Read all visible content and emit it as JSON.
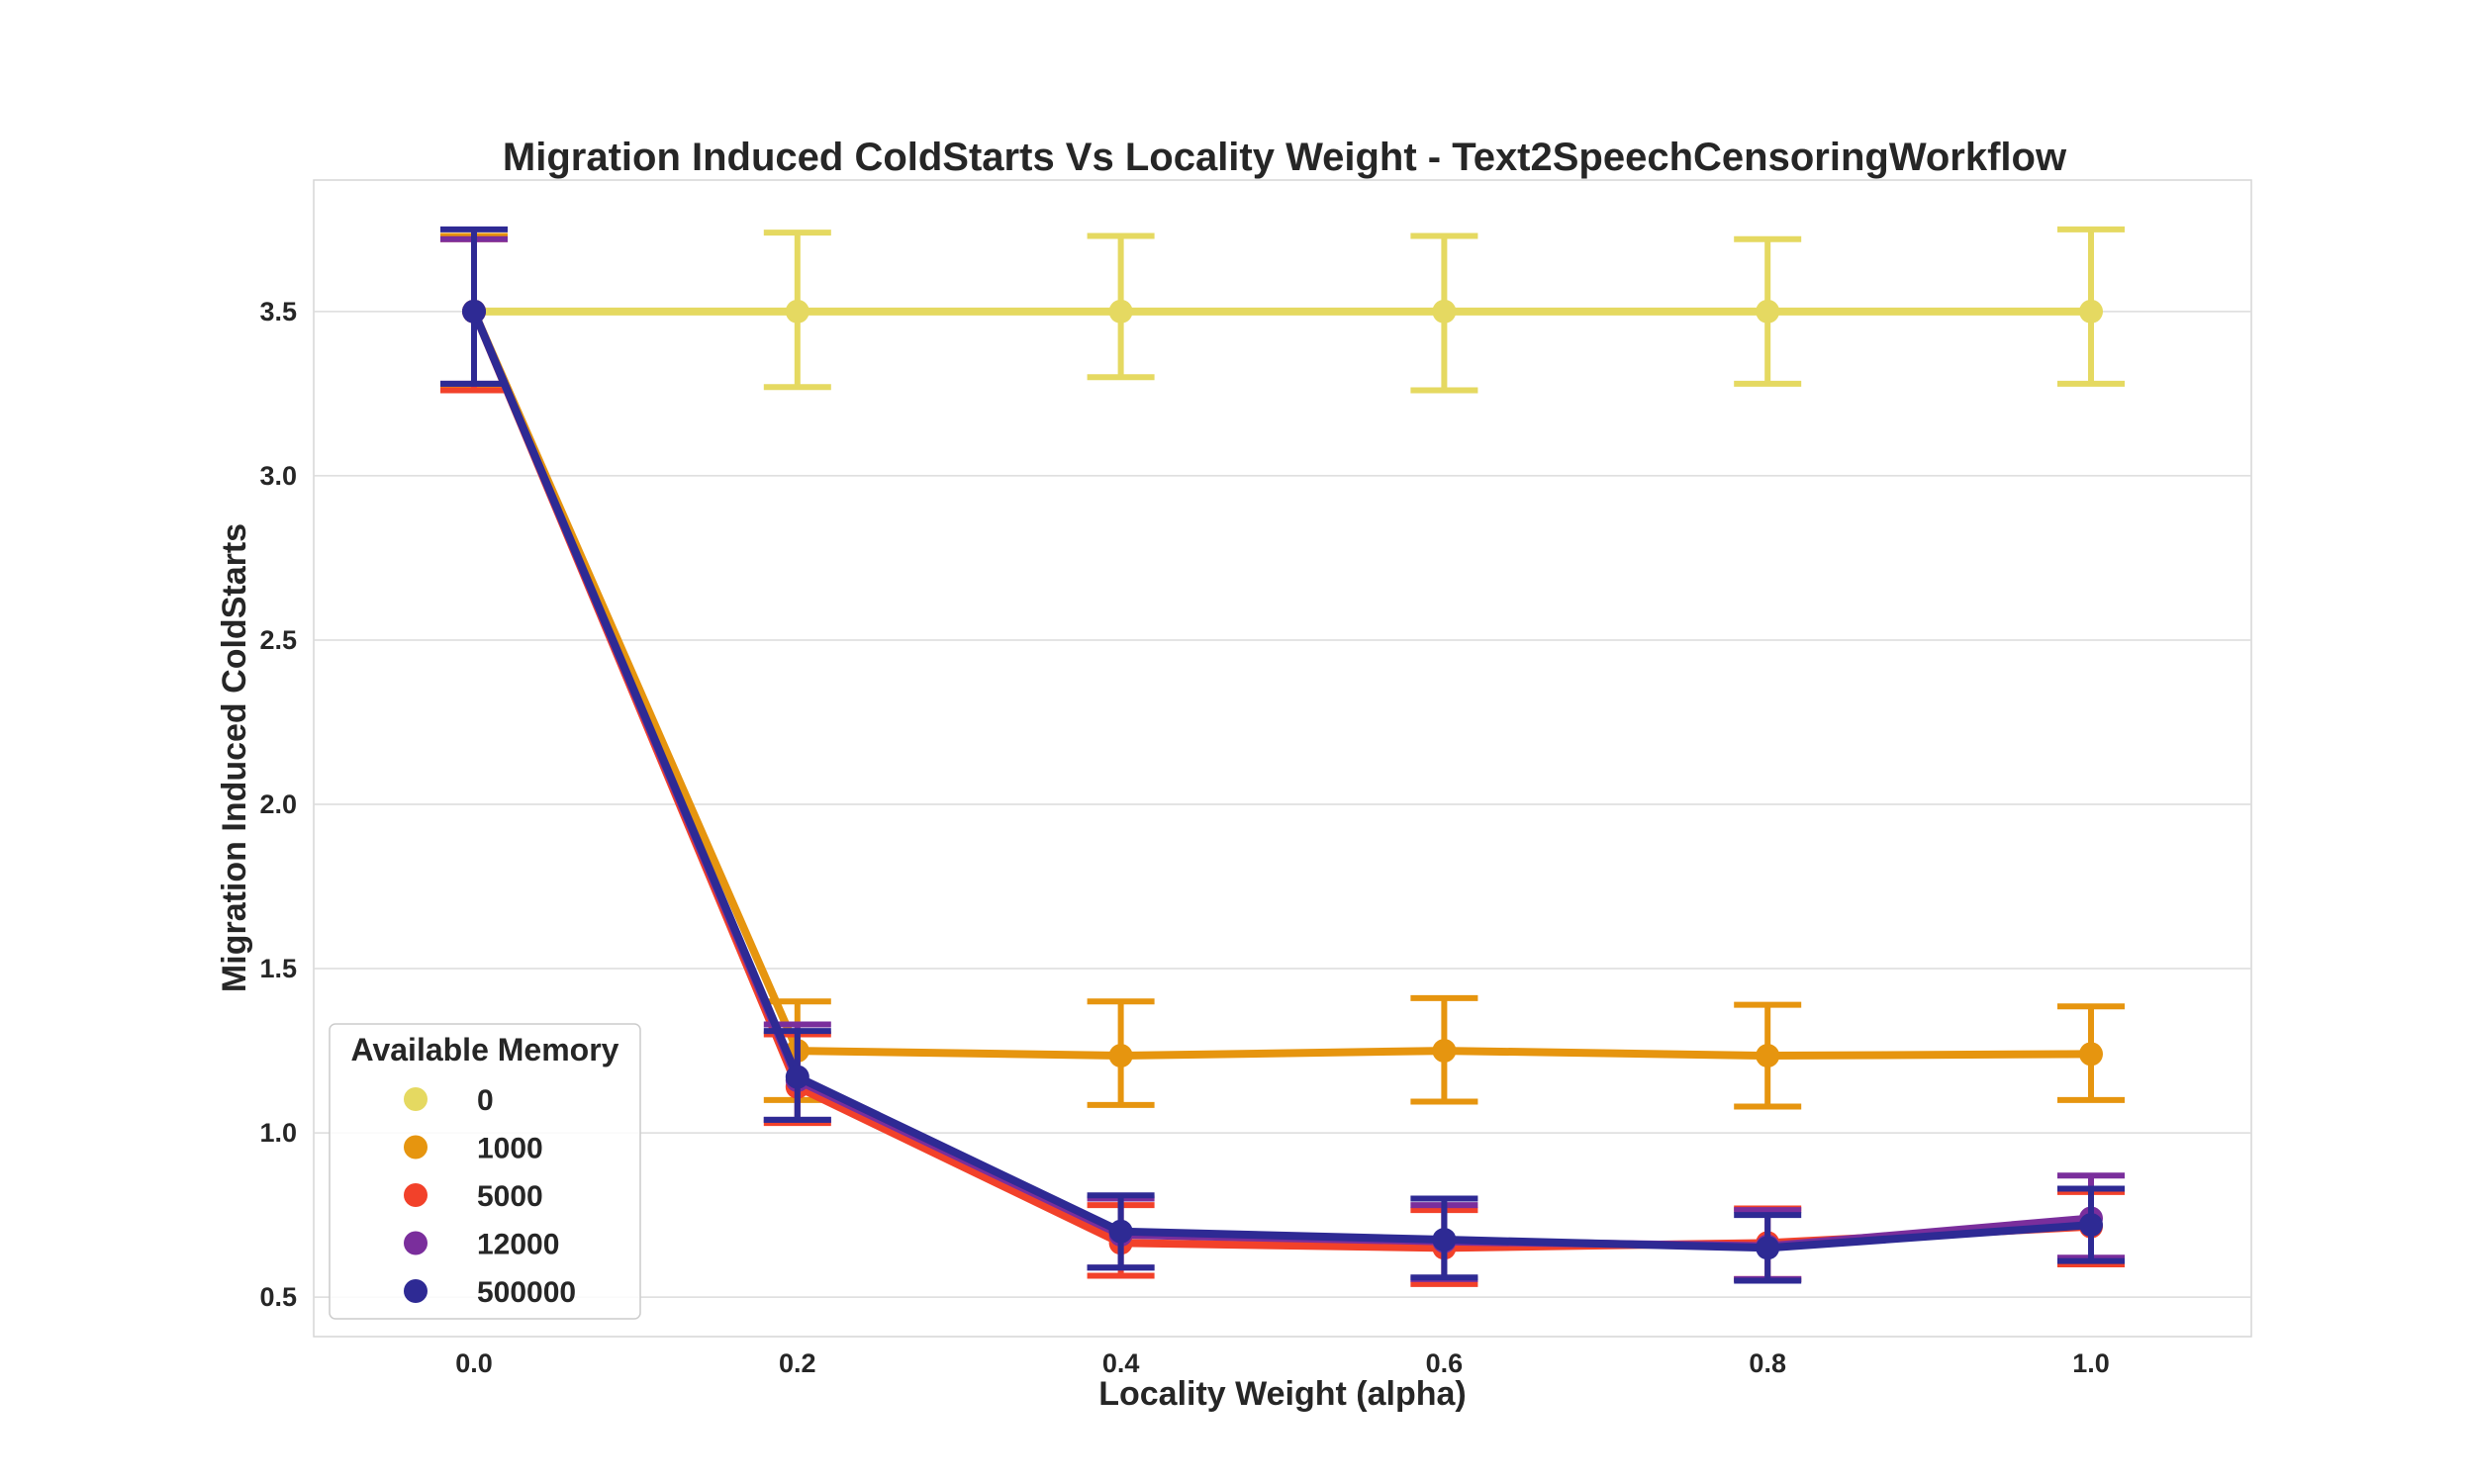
{
  "chart_data": {
    "type": "line",
    "title": "Migration Induced ColdStarts Vs Locality Weight - Text2SpeechCensoringWorkflow",
    "xlabel": "Locality Weight (alpha)",
    "ylabel": "Migration Induced ColdStarts",
    "x": [
      0.0,
      0.2,
      0.4,
      0.6,
      0.8,
      1.0
    ],
    "x_tick_labels": [
      "0.0",
      "0.2",
      "0.4",
      "0.6",
      "0.8",
      "1.0"
    ],
    "ylim": [
      0.38,
      3.9
    ],
    "y_ticks": [
      0.5,
      1.0,
      1.5,
      2.0,
      2.5,
      3.0,
      3.5
    ],
    "y_tick_labels": [
      "0.5",
      "1.0",
      "1.5",
      "2.0",
      "2.5",
      "3.0",
      "3.5"
    ],
    "grid": true,
    "legend": {
      "title": "Available Memory",
      "placement": "bottom-left"
    },
    "series": [
      {
        "name": "0",
        "color": "#e5d961",
        "values": [
          3.5,
          3.5,
          3.5,
          3.5,
          3.5,
          3.5
        ],
        "err_low": [
          3.27,
          3.27,
          3.3,
          3.26,
          3.28,
          3.28
        ],
        "err_high": [
          3.73,
          3.74,
          3.73,
          3.73,
          3.72,
          3.75
        ]
      },
      {
        "name": "1000",
        "color": "#e6950f",
        "values": [
          3.5,
          1.25,
          1.235,
          1.25,
          1.235,
          1.24
        ],
        "err_low": [
          3.27,
          1.1,
          1.085,
          1.095,
          1.08,
          1.1
        ],
        "err_high": [
          3.73,
          1.4,
          1.4,
          1.41,
          1.39,
          1.385
        ]
      },
      {
        "name": "5000",
        "color": "#f2412a",
        "values": [
          3.5,
          1.14,
          0.665,
          0.65,
          0.665,
          0.715
        ],
        "err_low": [
          3.26,
          1.03,
          0.565,
          0.54,
          0.555,
          0.6
        ],
        "err_high": [
          3.72,
          1.3,
          0.78,
          0.765,
          0.77,
          0.82
        ]
      },
      {
        "name": "12000",
        "color": "#7a2e9c",
        "values": [
          3.5,
          1.16,
          0.69,
          0.67,
          0.655,
          0.74
        ],
        "err_low": [
          3.28,
          1.04,
          0.59,
          0.555,
          0.555,
          0.62
        ],
        "err_high": [
          3.72,
          1.33,
          0.8,
          0.78,
          0.765,
          0.87
        ]
      },
      {
        "name": "500000",
        "color": "#2e2a94",
        "values": [
          3.5,
          1.17,
          0.7,
          0.675,
          0.65,
          0.72
        ],
        "err_low": [
          3.28,
          1.04,
          0.59,
          0.56,
          0.55,
          0.61
        ],
        "err_high": [
          3.75,
          1.31,
          0.81,
          0.8,
          0.75,
          0.83
        ]
      }
    ]
  }
}
